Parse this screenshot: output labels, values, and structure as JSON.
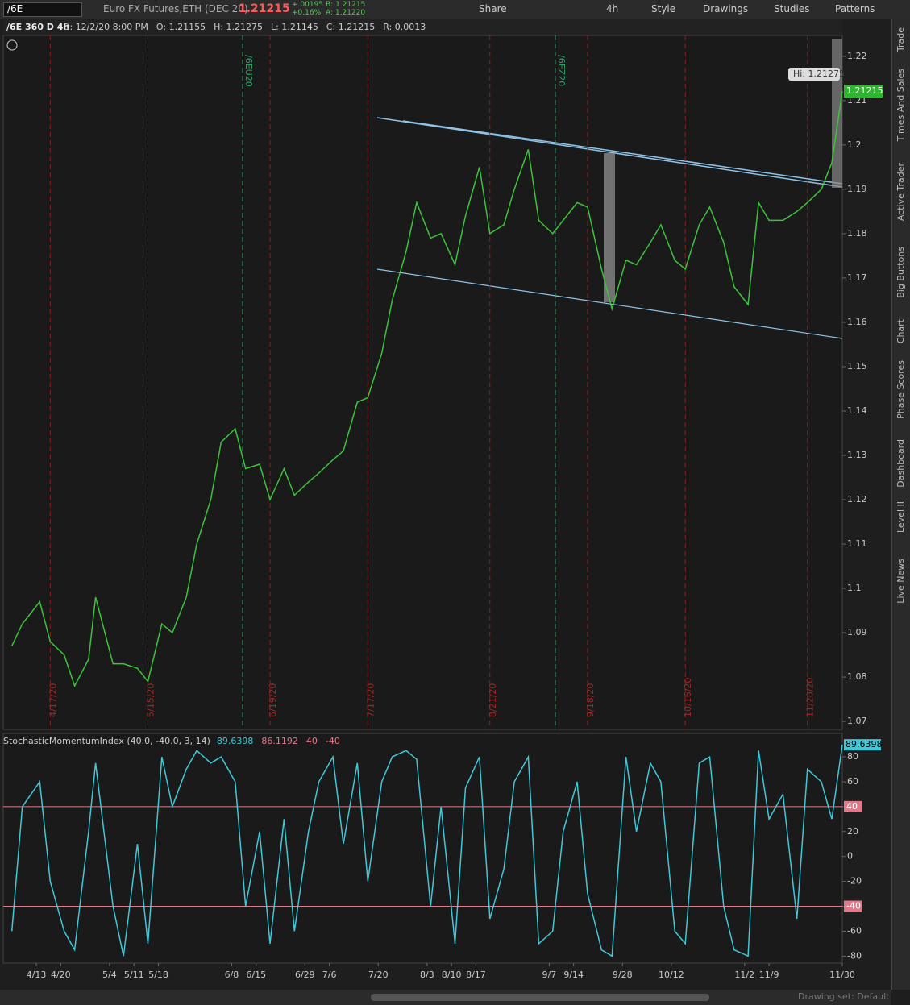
{
  "toolbar": {
    "symbol": "/6E",
    "description": "Euro FX Futures,ETH (DEC 20)",
    "last": "1.21215",
    "change": "+.00195",
    "change_pct": "+0.16%",
    "bid": "B: 1.21215",
    "ask": "A: 1.21220",
    "buttons": [
      "Share",
      "4h",
      "Style",
      "Drawings",
      "Studies",
      "Patterns"
    ]
  },
  "header": {
    "study": "/6E 360 D 4h",
    "readouts": [
      "D: 12/2/20 8:00 PM",
      "O: 1.21155",
      "H: 1.21275",
      "L: 1.21145",
      "C: 1.21215",
      "R: 0.0013"
    ]
  },
  "side_tabs": [
    "Trade",
    "Times And Sales",
    "Active Trader",
    "Big Buttons",
    "Chart",
    "Phase Scores",
    "Dashboard",
    "Level II",
    "Live News"
  ],
  "footer": {
    "drawing_set": "Drawing set: Default"
  },
  "chart_data": [
    {
      "type": "line",
      "color": "#3cc33c",
      "x": [
        "4/6",
        "4/9",
        "4/14",
        "4/17",
        "4/21",
        "4/24",
        "4/28",
        "4/30",
        "5/5",
        "5/8",
        "5/12",
        "5/15",
        "5/19",
        "5/22",
        "5/26",
        "5/29",
        "6/2",
        "6/5",
        "6/9",
        "6/12",
        "6/16",
        "6/19",
        "6/23",
        "6/26",
        "6/30",
        "7/3",
        "7/7",
        "7/10",
        "7/14",
        "7/17",
        "7/21",
        "7/24",
        "7/28",
        "7/31",
        "8/4",
        "8/7",
        "8/11",
        "8/14",
        "8/18",
        "8/21",
        "8/25",
        "8/28",
        "9/1",
        "9/4",
        "9/8",
        "9/11",
        "9/15",
        "9/18",
        "9/22",
        "9/25",
        "9/29",
        "10/2",
        "10/6",
        "10/9",
        "10/13",
        "10/16",
        "10/20",
        "10/23",
        "10/27",
        "10/30",
        "11/3",
        "11/6",
        "11/9",
        "11/13",
        "11/17",
        "11/20",
        "11/24",
        "11/27",
        "11/30"
      ],
      "values": [
        1.087,
        1.092,
        1.097,
        1.088,
        1.085,
        1.078,
        1.084,
        1.098,
        1.083,
        1.083,
        1.082,
        1.079,
        1.092,
        1.09,
        1.098,
        1.11,
        1.12,
        1.133,
        1.136,
        1.127,
        1.128,
        1.12,
        1.127,
        1.121,
        1.124,
        1.126,
        1.129,
        1.131,
        1.142,
        1.143,
        1.153,
        1.165,
        1.176,
        1.187,
        1.179,
        1.18,
        1.173,
        1.184,
        1.195,
        1.18,
        1.182,
        1.19,
        1.199,
        1.183,
        1.18,
        1.183,
        1.187,
        1.186,
        1.172,
        1.163,
        1.174,
        1.173,
        1.178,
        1.182,
        1.174,
        1.172,
        1.182,
        1.186,
        1.178,
        1.168,
        1.164,
        1.187,
        1.183,
        1.183,
        1.185,
        1.187,
        1.19,
        1.196,
        1.21215
      ],
      "ylim": [
        1.0682,
        1.2247
      ],
      "yticks": [
        1.07,
        1.08,
        1.09,
        1.1,
        1.11,
        1.12,
        1.13,
        1.14,
        1.15,
        1.16,
        1.17,
        1.18,
        1.19,
        1.2,
        1.21,
        1.22
      ],
      "xticks": [
        "4/13",
        "4/20",
        "5/4",
        "5/11",
        "5/18",
        "6/8",
        "6/15",
        "6/29",
        "7/6",
        "7/20",
        "8/3",
        "8/10",
        "8/17",
        "9/7",
        "9/14",
        "9/28",
        "10/12",
        "11/2",
        "11/9",
        "11/30"
      ],
      "markers": [
        "4/17/20",
        "5/15/20",
        "6/19/20",
        "7/17/20",
        "8/21/20",
        "9/18/20",
        "10/16/20",
        "11/20/20"
      ],
      "contracts": [
        "/6EU20",
        "/6EZ20"
      ],
      "hi_label": "Hi: 1.21275",
      "last_value": 1.21215
    },
    {
      "type": "line",
      "color": "#3fc8d8",
      "title": "StochasticMomentumIndex (40.0, -40.0, 3, 14)",
      "readouts": [
        "89.6398",
        "86.1192",
        "40",
        "-40"
      ],
      "values": [
        -60,
        40,
        60,
        -20,
        -60,
        -75,
        20,
        75,
        -40,
        -80,
        10,
        -70,
        80,
        40,
        70,
        85,
        75,
        80,
        60,
        -40,
        20,
        -70,
        30,
        -60,
        20,
        60,
        80,
        10,
        75,
        -20,
        60,
        80,
        85,
        78,
        -40,
        40,
        -70,
        55,
        80,
        -50,
        -10,
        60,
        80,
        -70,
        -60,
        20,
        60,
        -30,
        -75,
        -80,
        80,
        20,
        75,
        60,
        -60,
        -70,
        75,
        80,
        -40,
        -75,
        -80,
        85,
        30,
        50,
        -50,
        70,
        60,
        30,
        89.6398
      ],
      "ylim": [
        -85.6,
        98.8
      ],
      "yticks": [
        -80,
        -60,
        -40,
        -20,
        0,
        20,
        40,
        60,
        80
      ],
      "levels": [
        40,
        -40
      ],
      "last_value": 89.6398
    }
  ]
}
